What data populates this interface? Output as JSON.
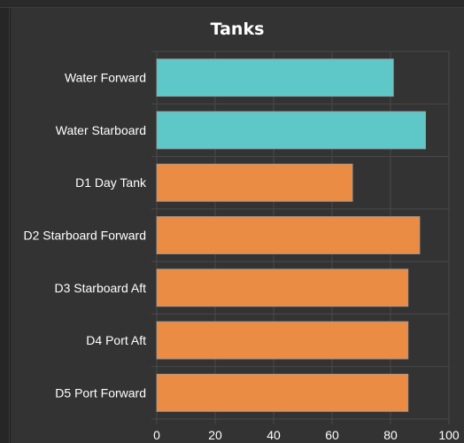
{
  "chart_data": {
    "type": "bar",
    "orientation": "horizontal",
    "title": "Tanks",
    "xlabel": "",
    "ylabel": "",
    "xlim": [
      0,
      100
    ],
    "x_ticks": [
      0,
      20,
      40,
      60,
      80,
      100
    ],
    "grid": true,
    "categories": [
      "Water Forward",
      "Water Starboard",
      "D1 Day Tank",
      "D2 Starboard Forward",
      "D3 Starboard Aft",
      "D4 Port Aft",
      "D5 Port Forward"
    ],
    "values": [
      81,
      92,
      67,
      90,
      86,
      86,
      86
    ],
    "colors": [
      "#5ec8c8",
      "#5ec8c8",
      "#eb8c45",
      "#eb8c45",
      "#eb8c45",
      "#eb8c45",
      "#eb8c45"
    ]
  },
  "style": {
    "panel_background": "#333333",
    "grid_color": "#4a4a4a",
    "text_color": "#ffffff"
  }
}
